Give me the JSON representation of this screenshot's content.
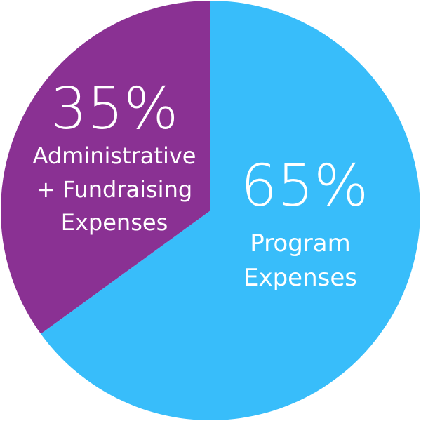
{
  "chart_data": {
    "type": "pie",
    "slices": [
      {
        "value": 65,
        "percent_label": "65%",
        "label_lines": [
          "Program",
          "Expenses"
        ],
        "color": "#38bdfa"
      },
      {
        "value": 35,
        "percent_label": "35%",
        "label_lines": [
          "Administrative",
          "+ Fundraising",
          "Expenses"
        ],
        "color": "#8a3193"
      }
    ],
    "start_angle_deg": 0,
    "direction": "clockwise"
  }
}
